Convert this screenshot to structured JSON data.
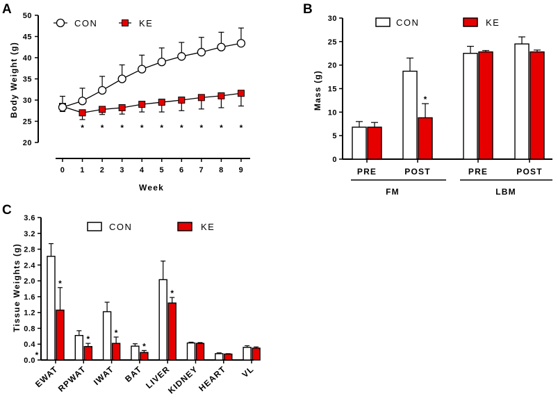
{
  "chart_data": [
    {
      "panel": "A",
      "type": "line",
      "xlabel": "Week",
      "ylabel": "Body Weight (g)",
      "x": [
        0,
        1,
        2,
        3,
        4,
        5,
        6,
        7,
        8,
        9
      ],
      "ylim": [
        20,
        50
      ],
      "yticks": [
        20,
        25,
        30,
        35,
        40,
        45,
        50
      ],
      "series": [
        {
          "name": "CON",
          "color": "#ffffff",
          "marker": "circle",
          "values": [
            28.3,
            29.8,
            32.3,
            35.0,
            37.3,
            39.0,
            40.3,
            41.3,
            42.5,
            43.4
          ],
          "errors": [
            2.6,
            3.0,
            3.3,
            3.3,
            3.3,
            3.3,
            3.3,
            3.5,
            3.5,
            3.6
          ]
        },
        {
          "name": "KE",
          "color": "#e60000",
          "marker": "square",
          "values": [
            28.5,
            27.0,
            27.8,
            28.2,
            29.0,
            29.5,
            30.0,
            30.6,
            31.0,
            31.6
          ],
          "errors": [
            1.2,
            1.6,
            1.2,
            1.5,
            1.8,
            2.3,
            2.5,
            2.7,
            2.8,
            3.0
          ]
        }
      ],
      "significance": [
        "",
        "*",
        "*",
        "*",
        "*",
        "*",
        "*",
        "*",
        "*",
        "*"
      ]
    },
    {
      "panel": "B",
      "type": "bar",
      "ylabel": "Mass (g)",
      "categories": [
        "PRE",
        "POST",
        "PRE",
        "POST"
      ],
      "groups": [
        {
          "label": "FM",
          "categories": [
            0,
            1
          ]
        },
        {
          "label": "LBM",
          "categories": [
            2,
            3
          ]
        }
      ],
      "ylim": [
        0,
        30
      ],
      "yticks": [
        0,
        5,
        10,
        15,
        20,
        25,
        30
      ],
      "series": [
        {
          "name": "CON",
          "color": "#ffffff",
          "values": [
            6.8,
            18.7,
            22.5,
            24.5
          ],
          "errors": [
            1.2,
            2.8,
            1.5,
            1.5
          ]
        },
        {
          "name": "KE",
          "color": "#e60000",
          "values": [
            6.8,
            8.8,
            22.8,
            22.8
          ],
          "errors": [
            1.0,
            3.0,
            0.3,
            0.4
          ]
        }
      ],
      "significance": [
        {
          "series": "KE",
          "category": 1,
          "mark": "*"
        }
      ]
    },
    {
      "panel": "C",
      "type": "bar",
      "ylabel": "Tissue Weights (g)",
      "categories": [
        "EWAT",
        "RPWAT",
        "IWAT",
        "BAT",
        "LIVER",
        "KIDNEY",
        "HEART",
        "VL"
      ],
      "ylim": [
        0,
        3.6
      ],
      "yticks": [
        "0.0",
        "0.4",
        "0.8",
        "1.2",
        "1.6",
        "2.0",
        "2.4",
        "2.8",
        "3.2",
        "3.6"
      ],
      "series": [
        {
          "name": "CON",
          "color": "#ffffff",
          "values": [
            2.62,
            0.62,
            1.22,
            0.35,
            2.03,
            0.43,
            0.16,
            0.32
          ],
          "errors": [
            0.32,
            0.12,
            0.24,
            0.06,
            0.47,
            0.02,
            0.02,
            0.04
          ]
        },
        {
          "name": "KE",
          "color": "#e60000",
          "values": [
            1.26,
            0.34,
            0.42,
            0.19,
            1.44,
            0.42,
            0.15,
            0.3
          ],
          "errors": [
            0.57,
            0.08,
            0.16,
            0.05,
            0.14,
            0.02,
            0.01,
            0.03
          ]
        }
      ],
      "significance": [
        {
          "series": "KE",
          "category": 0,
          "mark": "*"
        },
        {
          "series": "KE",
          "category": 1,
          "mark": "*"
        },
        {
          "series": "KE",
          "category": 2,
          "mark": "*"
        },
        {
          "series": "KE",
          "category": 3,
          "mark": "*"
        },
        {
          "series": "KE",
          "category": 4,
          "mark": "*"
        }
      ],
      "origin_mark": "*"
    }
  ]
}
